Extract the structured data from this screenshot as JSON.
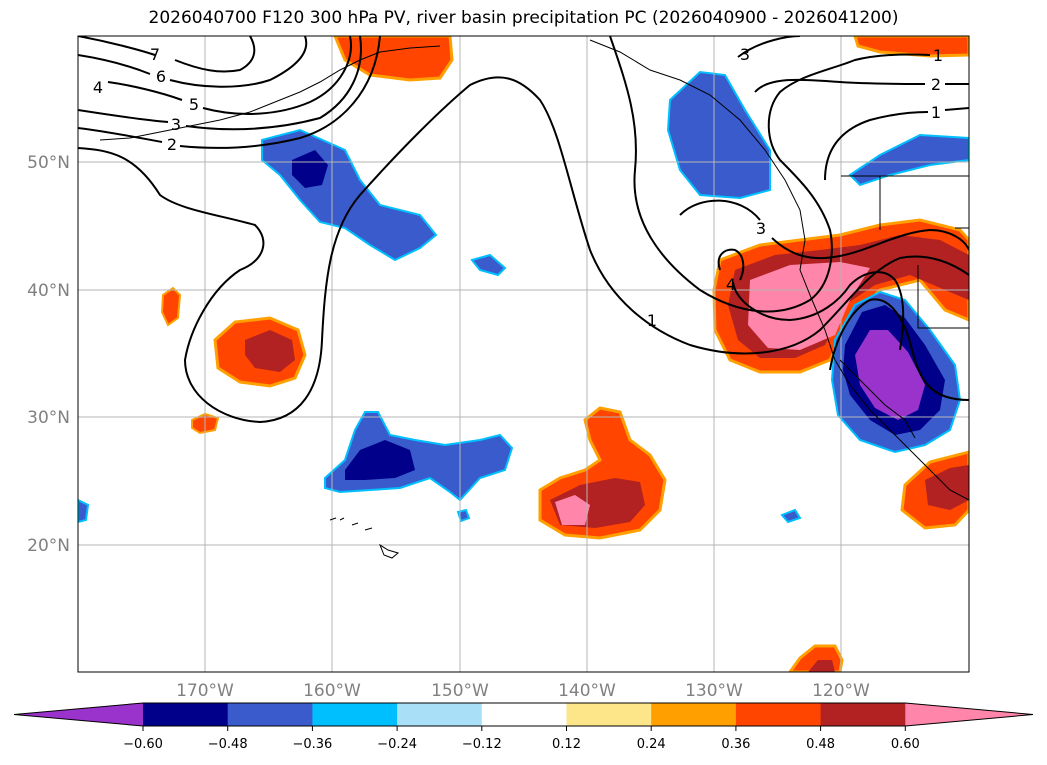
{
  "title": "2026040700 F120 300 hPa PV, river basin precipitation PC (2026040900 - 2026041200)",
  "lat_labels": [
    "50°N",
    "40°N",
    "30°N",
    "20°N"
  ],
  "lon_labels": [
    "170°W",
    "160°W",
    "150°W",
    "140°W",
    "130°W",
    "120°W"
  ],
  "contour_labels": [
    "7",
    "6",
    "5",
    "4",
    "3",
    "2",
    "1",
    "3",
    "2",
    "1",
    "3",
    "4",
    "1"
  ],
  "colorbar": {
    "ticks": [
      "−0.60",
      "−0.48",
      "−0.36",
      "−0.24",
      "−0.12",
      "0.12",
      "0.24",
      "0.36",
      "0.48",
      "0.60"
    ],
    "colors": [
      "#9933cc",
      "#00008b",
      "#3a5bcc",
      "#00bfff",
      "#aadff8",
      "#ffffff",
      "#fde68a",
      "#ffa000",
      "#ff4500",
      "#b22222",
      "#ff85aa"
    ]
  }
}
